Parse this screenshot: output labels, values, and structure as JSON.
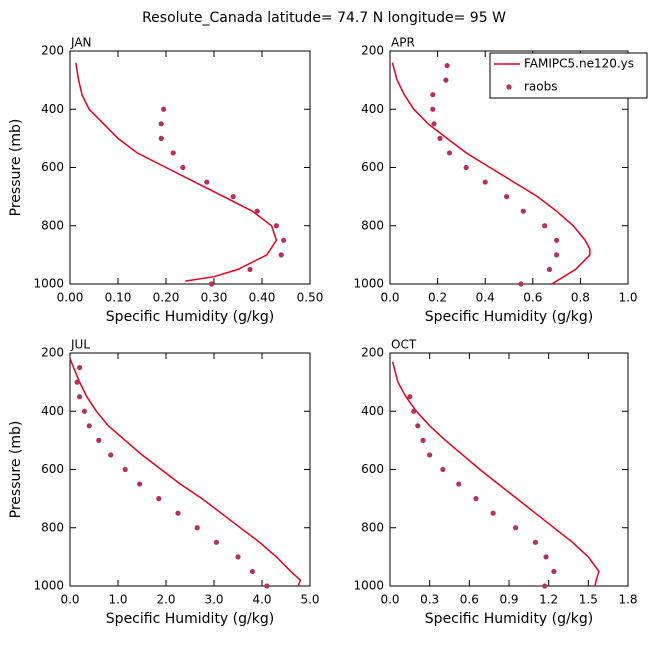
{
  "title": "Resolute_Canada  latitude= 74.7 N longitude= 95 W",
  "chart_data": [
    {
      "type": "line",
      "title": "JAN",
      "x_label": "Specific Humidity (g/kg)",
      "y_label": "Pressure (mb)",
      "xlim": [
        0,
        0.5
      ],
      "xticks": [
        {
          "value": 0,
          "label": "0.00"
        },
        {
          "value": 0.1,
          "label": "0.10"
        },
        {
          "value": 0.2,
          "label": "0.20"
        },
        {
          "value": 0.3,
          "label": "0.30"
        },
        {
          "value": 0.4,
          "label": "0.40"
        },
        {
          "value": 0.5,
          "label": "0.50"
        }
      ],
      "ylim": [
        1000,
        200
      ],
      "yticks": [
        200,
        400,
        600,
        800,
        1000
      ],
      "series": [
        {
          "style": "line",
          "color": "#e8001c",
          "x": [
            0.012,
            0.018,
            0.025,
            0.04,
            0.07,
            0.1,
            0.14,
            0.2,
            0.26,
            0.32,
            0.38,
            0.42,
            0.43,
            0.41,
            0.35,
            0.3,
            0.24
          ],
          "y": [
            240,
            300,
            350,
            400,
            450,
            500,
            550,
            600,
            650,
            700,
            750,
            800,
            850,
            900,
            950,
            975,
            990
          ]
        },
        {
          "style": "markers",
          "color": "#b5305a",
          "x": [
            0.195,
            0.19,
            0.19,
            0.215,
            0.235,
            0.285,
            0.34,
            0.39,
            0.43,
            0.445,
            0.44,
            0.375,
            0.295
          ],
          "y": [
            400,
            450,
            500,
            550,
            600,
            650,
            700,
            750,
            800,
            850,
            900,
            950,
            1000
          ]
        }
      ]
    },
    {
      "type": "line",
      "title": "APR",
      "x_label": "Specific Humidity (g/kg)",
      "xlim": [
        0,
        1
      ],
      "xticks": [
        {
          "value": 0,
          "label": "0.0"
        },
        {
          "value": 0.2,
          "label": "0.2"
        },
        {
          "value": 0.4,
          "label": "0.4"
        },
        {
          "value": 0.6,
          "label": "0.6"
        },
        {
          "value": 0.8,
          "label": "0.8"
        },
        {
          "value": 1,
          "label": "1.0"
        }
      ],
      "ylim": [
        1000,
        200
      ],
      "yticks": [
        200,
        400,
        600,
        800,
        1000
      ],
      "legend": "upper right",
      "series": [
        {
          "name": "FAMIPC5.ne120.ys",
          "style": "line",
          "color": "#e8001c",
          "x": [
            0.01,
            0.03,
            0.06,
            0.1,
            0.16,
            0.24,
            0.32,
            0.42,
            0.52,
            0.62,
            0.7,
            0.77,
            0.82,
            0.84,
            0.84,
            0.78,
            0.68
          ],
          "y": [
            240,
            300,
            350,
            400,
            450,
            500,
            550,
            600,
            650,
            700,
            750,
            800,
            850,
            880,
            900,
            950,
            1000
          ]
        },
        {
          "name": "raobs",
          "style": "markers",
          "color": "#b5305a",
          "x": [
            0.24,
            0.235,
            0.18,
            0.18,
            0.185,
            0.21,
            0.25,
            0.32,
            0.4,
            0.49,
            0.56,
            0.65,
            0.7,
            0.7,
            0.67,
            0.55
          ],
          "y": [
            250,
            300,
            350,
            400,
            450,
            500,
            550,
            600,
            650,
            700,
            750,
            800,
            850,
            900,
            950,
            1000
          ]
        }
      ]
    },
    {
      "type": "line",
      "title": "JUL",
      "x_label": "Specific Humidity (g/kg)",
      "y_label": "Pressure (mb)",
      "xlim": [
        0,
        5
      ],
      "xticks": [
        {
          "value": 0,
          "label": "0.0"
        },
        {
          "value": 1,
          "label": "1.0"
        },
        {
          "value": 2,
          "label": "2.0"
        },
        {
          "value": 3,
          "label": "3.0"
        },
        {
          "value": 4,
          "label": "4.0"
        },
        {
          "value": 5,
          "label": "5.0"
        }
      ],
      "ylim": [
        1000,
        200
      ],
      "yticks": [
        200,
        400,
        600,
        800,
        1000
      ],
      "series": [
        {
          "style": "line",
          "color": "#e8001c",
          "x": [
            0.0,
            0.2,
            0.35,
            0.55,
            0.8,
            1.15,
            1.5,
            1.9,
            2.3,
            2.75,
            3.15,
            3.55,
            3.95,
            4.3,
            4.6,
            4.8,
            4.75
          ],
          "y": [
            220,
            300,
            350,
            400,
            450,
            500,
            550,
            600,
            650,
            700,
            750,
            800,
            850,
            900,
            950,
            980,
            1000
          ]
        },
        {
          "style": "markers",
          "color": "#b5305a",
          "x": [
            0.2,
            0.15,
            0.2,
            0.3,
            0.4,
            0.6,
            0.85,
            1.15,
            1.45,
            1.85,
            2.25,
            2.65,
            3.05,
            3.5,
            3.8,
            4.1
          ],
          "y": [
            250,
            300,
            350,
            400,
            450,
            500,
            550,
            600,
            650,
            700,
            750,
            800,
            850,
            900,
            950,
            1000
          ]
        }
      ]
    },
    {
      "type": "line",
      "title": "OCT",
      "x_label": "Specific Humidity (g/kg)",
      "xlim": [
        0,
        1.8
      ],
      "xticks": [
        {
          "value": 0,
          "label": "0.0"
        },
        {
          "value": 0.3,
          "label": "0.3"
        },
        {
          "value": 0.6,
          "label": "0.6"
        },
        {
          "value": 0.9,
          "label": "0.9"
        },
        {
          "value": 1.2,
          "label": "1.2"
        },
        {
          "value": 1.5,
          "label": "1.5"
        },
        {
          "value": 1.8,
          "label": "1.8"
        }
      ],
      "ylim": [
        1000,
        200
      ],
      "yticks": [
        200,
        400,
        600,
        800,
        1000
      ],
      "series": [
        {
          "style": "line",
          "color": "#e8001c",
          "x": [
            0.02,
            0.06,
            0.12,
            0.2,
            0.3,
            0.42,
            0.55,
            0.68,
            0.82,
            0.96,
            1.1,
            1.24,
            1.38,
            1.5,
            1.58,
            1.56,
            1.55
          ],
          "y": [
            230,
            300,
            350,
            400,
            450,
            500,
            550,
            600,
            650,
            700,
            750,
            800,
            850,
            900,
            950,
            980,
            1000
          ]
        },
        {
          "style": "markers",
          "color": "#b5305a",
          "x": [
            0.15,
            0.18,
            0.21,
            0.25,
            0.3,
            0.4,
            0.52,
            0.65,
            0.78,
            0.95,
            1.1,
            1.18,
            1.24,
            1.17
          ],
          "y": [
            350,
            400,
            450,
            500,
            550,
            600,
            650,
            700,
            750,
            800,
            850,
            900,
            950,
            1000
          ]
        }
      ]
    }
  ]
}
